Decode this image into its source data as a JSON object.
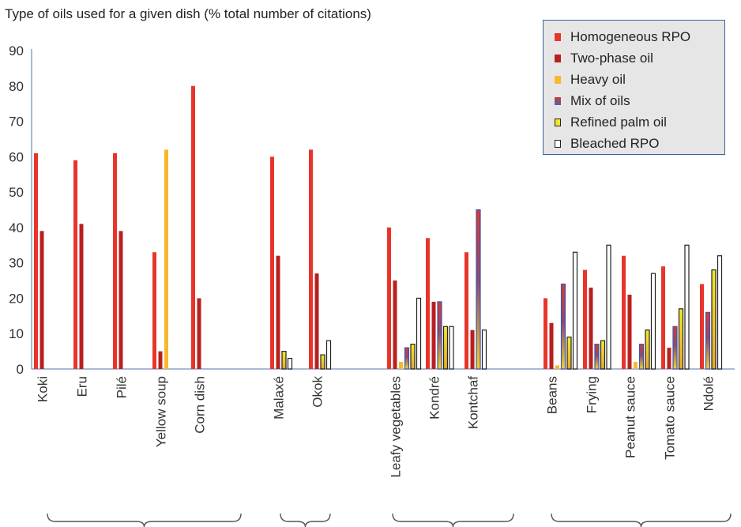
{
  "chart_data": {
    "type": "bar",
    "title": "Type of oils used for a given dish (% total number of citations)",
    "xlabel": "",
    "ylabel": "",
    "ylim": [
      0,
      90
    ],
    "yticks": [
      0,
      10,
      20,
      30,
      40,
      50,
      60,
      70,
      80,
      90
    ],
    "grid": false,
    "legend_position": "top-right",
    "categories": [
      "Koki",
      "Eru",
      "Pilé",
      "Yellow soup",
      "Corn dish",
      "Malaxé",
      "Okok",
      "Leafy vegetables",
      "Kondré",
      "Kontchaf",
      "Beans",
      "Frying",
      "Peanut sauce",
      "Tomato sauce",
      "Ndolé"
    ],
    "category_groups": [
      [
        "Koki",
        "Eru",
        "Pilé",
        "Yellow soup",
        "Corn dish"
      ],
      [
        "Malaxé",
        "Okok"
      ],
      [
        "Leafy vegetables",
        "Kondré",
        "Kontchaf"
      ],
      [
        "Beans",
        "Frying",
        "Peanut sauce",
        "Tomato sauce",
        "Ndolé"
      ]
    ],
    "series": [
      {
        "name": "Homogeneous RPO",
        "color": "#e8352a",
        "values": [
          61,
          59,
          61,
          33,
          80,
          60,
          62,
          40,
          37,
          33,
          20,
          28,
          32,
          29,
          24
        ]
      },
      {
        "name": "Two-phase oil",
        "color": "#b8201f",
        "values": [
          39,
          41,
          39,
          5,
          20,
          32,
          27,
          25,
          19,
          11,
          13,
          23,
          21,
          6,
          0
        ]
      },
      {
        "name": "Heavy oil",
        "color": "#f9b72b",
        "values": [
          0,
          0,
          0,
          62,
          0,
          0,
          0,
          2,
          0,
          0,
          1,
          0,
          2,
          0,
          0
        ]
      },
      {
        "name": "Mix of oils",
        "color": "#4a64b4",
        "values": [
          0,
          0,
          0,
          0,
          0,
          0,
          0,
          6,
          19,
          45,
          24,
          7,
          7,
          12,
          16
        ]
      },
      {
        "name": "Refined palm oil",
        "color": "#f2e52a",
        "values": [
          0,
          0,
          0,
          0,
          0,
          5,
          4,
          7,
          12,
          0,
          9,
          8,
          11,
          17,
          28
        ]
      },
      {
        "name": "Bleached RPO",
        "color": "#ffffff",
        "values": [
          0,
          0,
          0,
          0,
          0,
          3,
          8,
          20,
          12,
          11,
          33,
          35,
          27,
          35,
          32
        ]
      }
    ]
  }
}
